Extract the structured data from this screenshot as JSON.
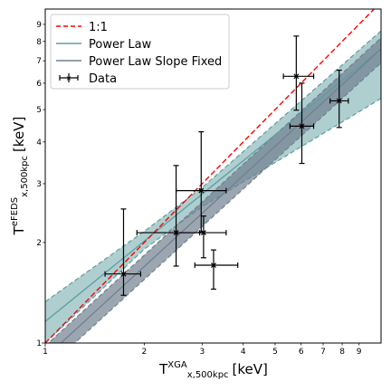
{
  "chart_data": {
    "type": "scatter",
    "title": "",
    "xlabel": {
      "main": "T",
      "sub": "x,500kpc",
      "sup": "XGA",
      "unit": "[keV]"
    },
    "ylabel": {
      "main": "T",
      "sub": "x,500kpc",
      "sup": "eFEDS",
      "unit": "[keV]"
    },
    "xscale": "log",
    "yscale": "log",
    "xlim": [
      1.0,
      10.5
    ],
    "ylim": [
      1.0,
      10.0
    ],
    "x_ticks": [
      {
        "value": 1,
        "label": "1"
      },
      {
        "value": 2,
        "label": "2"
      },
      {
        "value": 3,
        "label": "3"
      },
      {
        "value": 4,
        "label": "4"
      },
      {
        "value": 5,
        "label": "5"
      },
      {
        "value": 6,
        "label": "6"
      },
      {
        "value": 7,
        "label": "7"
      },
      {
        "value": 8,
        "label": "8"
      },
      {
        "value": 9,
        "label": "9"
      }
    ],
    "y_ticks": [
      {
        "value": 1,
        "label": "1"
      },
      {
        "value": 2,
        "label": "2"
      },
      {
        "value": 3,
        "label": "3"
      },
      {
        "value": 4,
        "label": "4"
      },
      {
        "value": 5,
        "label": "5"
      },
      {
        "value": 6,
        "label": "6"
      },
      {
        "value": 7,
        "label": "7"
      },
      {
        "value": 8,
        "label": "8"
      },
      {
        "value": 9,
        "label": "9"
      }
    ],
    "legend": {
      "placement": "top-left",
      "entries": [
        {
          "label": "1:1",
          "style": "dashed-line",
          "color": "#ff0000"
        },
        {
          "label": "Power Law",
          "style": "line",
          "color": "#5f9ea0"
        },
        {
          "label": "Power Law Slope Fixed",
          "style": "line",
          "color": "#708090"
        },
        {
          "label": "Data",
          "style": "errorbar-x",
          "color": "#000000"
        }
      ]
    },
    "one_to_one": {
      "color": "#ff0000",
      "points": [
        [
          1.0,
          1.0
        ],
        [
          10.5,
          10.5
        ]
      ]
    },
    "power_law": {
      "color": "#5f9ea0",
      "band_color": "#5f9ea0",
      "band_opacity": 0.5,
      "center": [
        [
          1.0,
          1.16
        ],
        [
          10.5,
          7.6
        ]
      ],
      "lower": [
        [
          1.0,
          1.0
        ],
        [
          2.0,
          1.91
        ],
        [
          3.0,
          2.56
        ],
        [
          10.5,
          5.4
        ]
      ],
      "upper": [
        [
          1.0,
          1.33
        ],
        [
          2.0,
          2.16
        ],
        [
          3.0,
          2.92
        ],
        [
          10.5,
          8.6
        ]
      ]
    },
    "power_law_fixed": {
      "color": "#708090",
      "band_color": "#708090",
      "band_opacity": 0.7,
      "center": [
        [
          1.0,
          0.905
        ],
        [
          10.5,
          7.6
        ]
      ],
      "lower": [
        [
          1.0,
          0.83
        ],
        [
          10.5,
          6.9
        ]
      ],
      "upper": [
        [
          1.0,
          0.98
        ],
        [
          10.5,
          8.2
        ]
      ]
    },
    "points": [
      {
        "x": 1.73,
        "y": 1.61,
        "xerr": [
          1.52,
          1.95
        ],
        "yerr": [
          1.39,
          2.52
        ]
      },
      {
        "x": 2.5,
        "y": 2.14,
        "xerr": [
          1.9,
          2.95
        ],
        "yerr": [
          1.7,
          3.4
        ]
      },
      {
        "x": 2.98,
        "y": 2.86,
        "xerr": [
          2.5,
          3.55
        ],
        "yerr": [
          2.15,
          4.29
        ]
      },
      {
        "x": 3.03,
        "y": 2.14,
        "xerr": [
          2.5,
          3.55
        ],
        "yerr": [
          1.8,
          2.4
        ]
      },
      {
        "x": 3.25,
        "y": 1.71,
        "xerr": [
          2.85,
          3.85
        ],
        "yerr": [
          1.45,
          1.9
        ]
      },
      {
        "x": 5.8,
        "y": 6.29,
        "xerr": [
          5.3,
          6.55
        ],
        "yerr": [
          4.98,
          8.3
        ]
      },
      {
        "x": 6.03,
        "y": 4.46,
        "xerr": [
          5.55,
          6.55
        ],
        "yerr": [
          3.45,
          6.0
        ]
      },
      {
        "x": 7.83,
        "y": 5.31,
        "xerr": [
          7.35,
          8.35
        ],
        "yerr": [
          4.42,
          6.56
        ]
      }
    ]
  }
}
